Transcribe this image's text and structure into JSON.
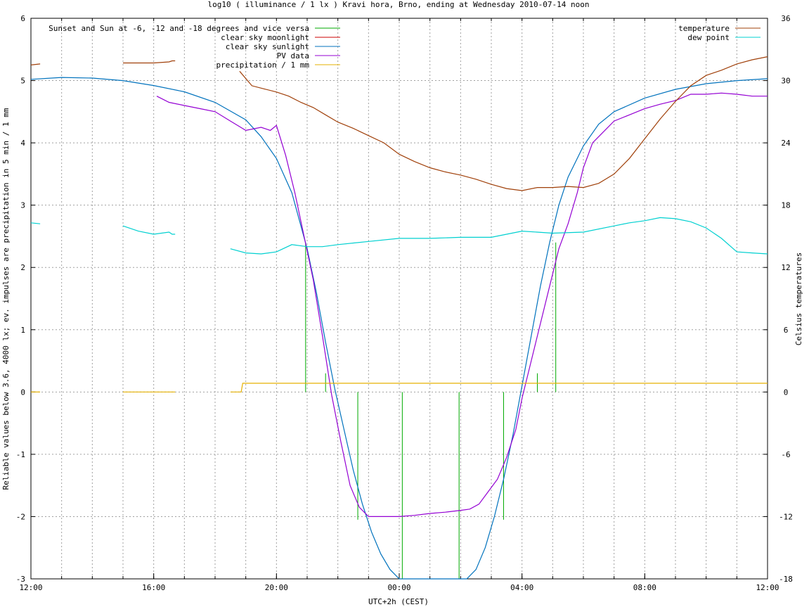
{
  "chart_data": {
    "type": "line",
    "title": "log10 ( illuminance / 1 lx ) Kravi hora, Brno, ending at Wednesday 2010-07-14 noon",
    "xlabel": "UTC+2h (CEST)",
    "ylabel": "Reliable values below 3.6, 4000 lx; ev. impulses are precipitation in 5 min / 1 mm",
    "y2label": "Celsius temperatures",
    "x_unit": "hours since 12:00",
    "xlim": [
      0,
      24
    ],
    "ylim": [
      -3,
      6
    ],
    "y2lim": [
      -18,
      36
    ],
    "x_ticks": [
      {
        "pos": 0,
        "label": "12:00"
      },
      {
        "pos": 4,
        "label": "16:00"
      },
      {
        "pos": 8,
        "label": "20:00"
      },
      {
        "pos": 12,
        "label": "00:00"
      },
      {
        "pos": 16,
        "label": "04:00"
      },
      {
        "pos": 20,
        "label": "08:00"
      },
      {
        "pos": 24,
        "label": "12:00"
      }
    ],
    "y_ticks": [
      "-3",
      "-2",
      "-1",
      "0",
      "1",
      "2",
      "3",
      "4",
      "5",
      "6"
    ],
    "y2_ticks": [
      "-18",
      "-12",
      "-6",
      "0",
      "6",
      "12",
      "18",
      "24",
      "30",
      "36"
    ],
    "grid": true,
    "legend_left": [
      {
        "label": "Sunset and Sun at -6, -12 and -18 degrees and vice versa",
        "color": "#00aa00"
      },
      {
        "label": "clear sky moonlight",
        "color": "#cc0000"
      },
      {
        "label": "clear sky sunlight",
        "color": "#0072bd"
      },
      {
        "label": "PV data",
        "color": "#9400d3"
      },
      {
        "label": "precipitation / 1 mm",
        "color": "#e6b000"
      }
    ],
    "legend_right": [
      {
        "label": "temperature",
        "color": "#a0400a"
      },
      {
        "label": "dew point",
        "color": "#00d0d0"
      }
    ],
    "sun_event_lines": [
      {
        "x": 8.95,
        "y_top": 2.4
      },
      {
        "x": 9.6,
        "y_top": 0.3
      },
      {
        "x": 10.65,
        "y_top": -2.05
      },
      {
        "x": 12.1,
        "y_top": -3.0
      },
      {
        "x": 13.95,
        "y_top": -3.0
      },
      {
        "x": 15.4,
        "y_top": -2.05
      },
      {
        "x": 16.5,
        "y_top": 0.3
      },
      {
        "x": 17.1,
        "y_top": 2.4
      }
    ],
    "series": [
      {
        "name": "clear sky sunlight",
        "color": "#0072bd",
        "x": [
          0,
          1,
          2,
          3,
          4,
          5,
          6,
          7,
          7.5,
          8,
          8.5,
          9,
          9.3,
          9.6,
          9.9,
          10.2,
          10.5,
          10.8,
          11.1,
          11.4,
          11.7,
          12.0,
          12.3,
          14.2,
          14.5,
          14.8,
          15.1,
          15.4,
          15.7,
          16.0,
          16.3,
          16.6,
          16.9,
          17.2,
          17.5,
          18,
          18.5,
          19,
          20,
          21,
          22,
          23,
          24
        ],
        "values": [
          5.02,
          5.05,
          5.04,
          5.0,
          4.92,
          4.82,
          4.65,
          4.37,
          4.1,
          3.75,
          3.2,
          2.3,
          1.6,
          0.8,
          0.05,
          -0.6,
          -1.25,
          -1.8,
          -2.25,
          -2.6,
          -2.85,
          -3.0,
          -3.05,
          -3.05,
          -2.85,
          -2.5,
          -2.0,
          -1.4,
          -0.7,
          0.1,
          0.9,
          1.7,
          2.4,
          3.0,
          3.45,
          3.95,
          4.3,
          4.5,
          4.72,
          4.86,
          4.95,
          5.0,
          5.03
        ]
      },
      {
        "name": "PV data",
        "color": "#9400d3",
        "x": [
          4.1,
          4.5,
          5.0,
          5.5,
          6.0,
          6.5,
          7.0,
          7.5,
          7.8,
          8.0,
          8.3,
          8.6,
          8.9,
          9.2,
          9.5,
          9.8,
          10.1,
          10.4,
          10.7,
          11.0,
          11.5,
          12.0,
          12.5,
          13.0,
          13.5,
          14.0,
          14.3,
          14.6,
          14.9,
          15.2,
          15.5,
          15.8,
          16.0,
          16.3,
          16.6,
          16.9,
          17.2,
          17.5,
          17.8,
          18.0,
          18.3,
          18.6,
          19.0,
          19.5,
          20.0,
          20.5,
          21.0,
          21.5,
          22.0,
          22.5,
          23.0,
          23.5,
          24.0
        ],
        "values": [
          4.75,
          4.65,
          4.6,
          4.55,
          4.5,
          4.35,
          4.2,
          4.25,
          4.2,
          4.28,
          3.8,
          3.2,
          2.5,
          1.8,
          0.9,
          -0.05,
          -0.8,
          -1.5,
          -1.85,
          -2.0,
          -2.0,
          -2.0,
          -1.98,
          -1.95,
          -1.93,
          -1.9,
          -1.88,
          -1.8,
          -1.6,
          -1.4,
          -1.05,
          -0.6,
          -0.1,
          0.5,
          1.1,
          1.7,
          2.3,
          2.7,
          3.2,
          3.6,
          4.0,
          4.15,
          4.35,
          4.45,
          4.55,
          4.62,
          4.68,
          4.78,
          4.78,
          4.8,
          4.78,
          4.75,
          4.75
        ]
      },
      {
        "name": "temperature",
        "color": "#a0400a",
        "axis": "right",
        "segments": [
          {
            "x": [
              0,
              0.3
            ],
            "values": [
              31.5,
              31.6
            ]
          },
          {
            "x": [
              3.0,
              4.0,
              4.5,
              4.6,
              4.7
            ],
            "values": [
              31.7,
              31.7,
              31.8,
              31.9,
              31.9
            ]
          },
          {
            "x": [
              6.8,
              7.2,
              7.6,
              8.0,
              8.4,
              8.8,
              9.2,
              9.6,
              10.0,
              10.5,
              11.0,
              11.5,
              12.0,
              12.5,
              13.0,
              13.5,
              14.0,
              14.5,
              15.0,
              15.5,
              16.0,
              16.5,
              17.0,
              17.5,
              18.0,
              18.5,
              19.0,
              19.5,
              20.0,
              20.5,
              21.0,
              21.5,
              22.0,
              22.5,
              23.0,
              23.5,
              24.0
            ],
            "values": [
              30.9,
              29.5,
              29.2,
              28.9,
              28.5,
              27.9,
              27.4,
              26.7,
              26.0,
              25.4,
              24.7,
              24.0,
              22.9,
              22.2,
              21.6,
              21.2,
              20.9,
              20.5,
              20.0,
              19.6,
              19.4,
              19.7,
              19.7,
              19.8,
              19.7,
              20.1,
              21.0,
              22.5,
              24.4,
              26.3,
              28.0,
              29.5,
              30.5,
              31.0,
              31.6,
              32.0,
              32.3
            ]
          }
        ]
      },
      {
        "name": "dew point",
        "color": "#00d0d0",
        "axis": "right",
        "segments": [
          {
            "x": [
              0,
              0.3
            ],
            "values": [
              16.3,
              16.2
            ]
          },
          {
            "x": [
              3.0,
              3.5,
              4.0,
              4.5,
              4.6,
              4.7
            ],
            "values": [
              16.0,
              15.5,
              15.2,
              15.4,
              15.2,
              15.2
            ]
          },
          {
            "x": [
              6.5,
              7.0,
              7.5,
              8.0,
              8.5,
              9.0,
              9.5,
              10.0,
              11.0,
              12.0,
              13.0,
              14.0,
              15.0,
              16.0,
              17.0,
              18.0,
              19.0,
              19.5,
              20.0,
              20.5,
              21.0,
              21.5,
              22.0,
              22.5,
              23.0,
              23.5,
              24.0
            ],
            "values": [
              13.8,
              13.4,
              13.3,
              13.5,
              14.2,
              14.0,
              14.0,
              14.2,
              14.5,
              14.8,
              14.8,
              14.9,
              14.9,
              15.5,
              15.3,
              15.4,
              16.0,
              16.3,
              16.5,
              16.8,
              16.7,
              16.4,
              15.8,
              14.8,
              13.5,
              13.4,
              13.3
            ]
          }
        ]
      },
      {
        "name": "precipitation / 1 mm",
        "color": "#e6b000",
        "segments": [
          {
            "x": [
              0,
              0.3
            ],
            "values": [
              0,
              0
            ]
          },
          {
            "x": [
              3.0,
              4.7
            ],
            "values": [
              0,
              0
            ]
          },
          {
            "x": [
              6.5,
              6.85,
              6.9,
              24.0
            ],
            "values": [
              0,
              0,
              0.14,
              0.14
            ]
          }
        ]
      }
    ]
  }
}
